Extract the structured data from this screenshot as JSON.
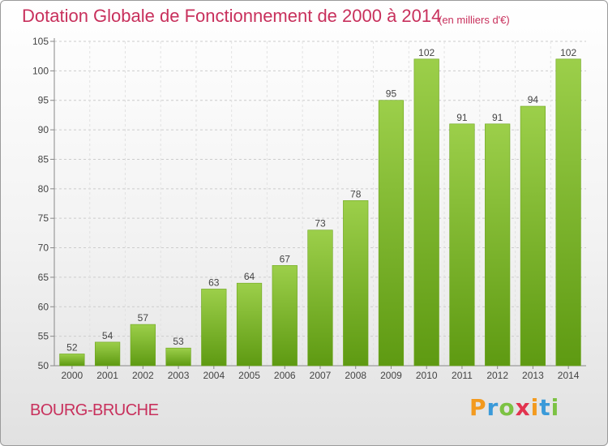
{
  "header": {
    "title": "Dotation Globale de Fonctionnement de 2000 à 2014",
    "subtitle": "(en milliers d'€)"
  },
  "footer": {
    "commune": "BOURG-BRUCHE",
    "logo_text": "Proxiti"
  },
  "colors": {
    "title": "#c8305c",
    "bar_light": "#9ccf4a",
    "bar_dark": "#5e9a12",
    "grid": "#cccccc"
  },
  "chart_data": {
    "type": "bar",
    "title": "Dotation Globale de Fonctionnement de 2000 à 2014",
    "subtitle": "(en milliers d'€)",
    "categories": [
      "2000",
      "2001",
      "2002",
      "2003",
      "2004",
      "2005",
      "2006",
      "2007",
      "2008",
      "2009",
      "2010",
      "2011",
      "2012",
      "2013",
      "2014"
    ],
    "values": [
      52,
      54,
      57,
      53,
      63,
      64,
      67,
      73,
      78,
      95,
      102,
      91,
      91,
      94,
      102
    ],
    "ylim": [
      50,
      105
    ],
    "yticks": [
      50,
      55,
      60,
      65,
      70,
      75,
      80,
      85,
      90,
      95,
      100,
      105
    ],
    "grid": true,
    "data_labels": true
  }
}
